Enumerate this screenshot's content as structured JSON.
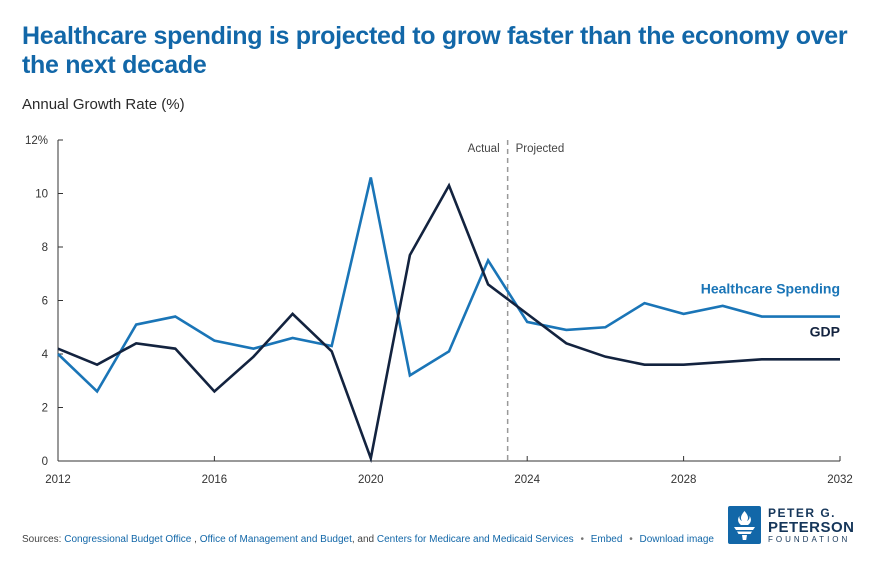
{
  "header": {
    "title": "Healthcare spending is projected to grow faster than the economy over the next decade",
    "subtitle": "Annual Growth Rate (%)"
  },
  "chart_data": {
    "type": "line",
    "x": [
      2012,
      2013,
      2014,
      2015,
      2016,
      2017,
      2018,
      2019,
      2020,
      2021,
      2022,
      2023,
      2024,
      2025,
      2026,
      2027,
      2028,
      2029,
      2030,
      2031,
      2032
    ],
    "series": [
      {
        "name": "Healthcare Spending",
        "color": "#1a75b7",
        "values": [
          4.0,
          2.6,
          5.1,
          5.4,
          4.5,
          4.2,
          4.6,
          4.3,
          10.6,
          3.2,
          4.1,
          7.5,
          5.2,
          4.9,
          5.0,
          5.9,
          5.5,
          5.8,
          5.4,
          5.4,
          5.4
        ]
      },
      {
        "name": "GDP",
        "color": "#13233f",
        "values": [
          4.2,
          3.6,
          4.4,
          4.2,
          2.6,
          3.9,
          5.5,
          4.1,
          0.1,
          7.7,
          10.3,
          6.6,
          5.5,
          4.4,
          3.9,
          3.6,
          3.6,
          3.7,
          3.8,
          3.8,
          3.8
        ]
      }
    ],
    "ylim": [
      0,
      12
    ],
    "yticks": [
      0,
      2,
      4,
      6,
      8,
      10,
      12
    ],
    "ytick_labels": [
      "0",
      "2",
      "4",
      "6",
      "8",
      "10",
      "12%"
    ],
    "xlim": [
      2012,
      2032
    ],
    "xticks": [
      2012,
      2016,
      2020,
      2024,
      2028,
      2032
    ],
    "xtick_labels": [
      "2012",
      "2016",
      "2020",
      "2024",
      "2028",
      "2032"
    ],
    "divider": {
      "x": 2023.5,
      "left_label": "Actual",
      "right_label": "Projected"
    },
    "grid": false
  },
  "footer": {
    "sources_prefix": "Sources:",
    "source_cbo": "Congressional Budget Office",
    "sep1": " , ",
    "source_omb": "Office of Management and Budget",
    "sep2": ", and ",
    "source_cms": "Centers for Medicare and Medicaid Services",
    "bullet": "•",
    "embed": "Embed",
    "download": "Download image"
  },
  "logo": {
    "line1": "PETER G.",
    "line2": "PETERSON",
    "line3": "FOUNDATION",
    "color": "#1267a8"
  }
}
